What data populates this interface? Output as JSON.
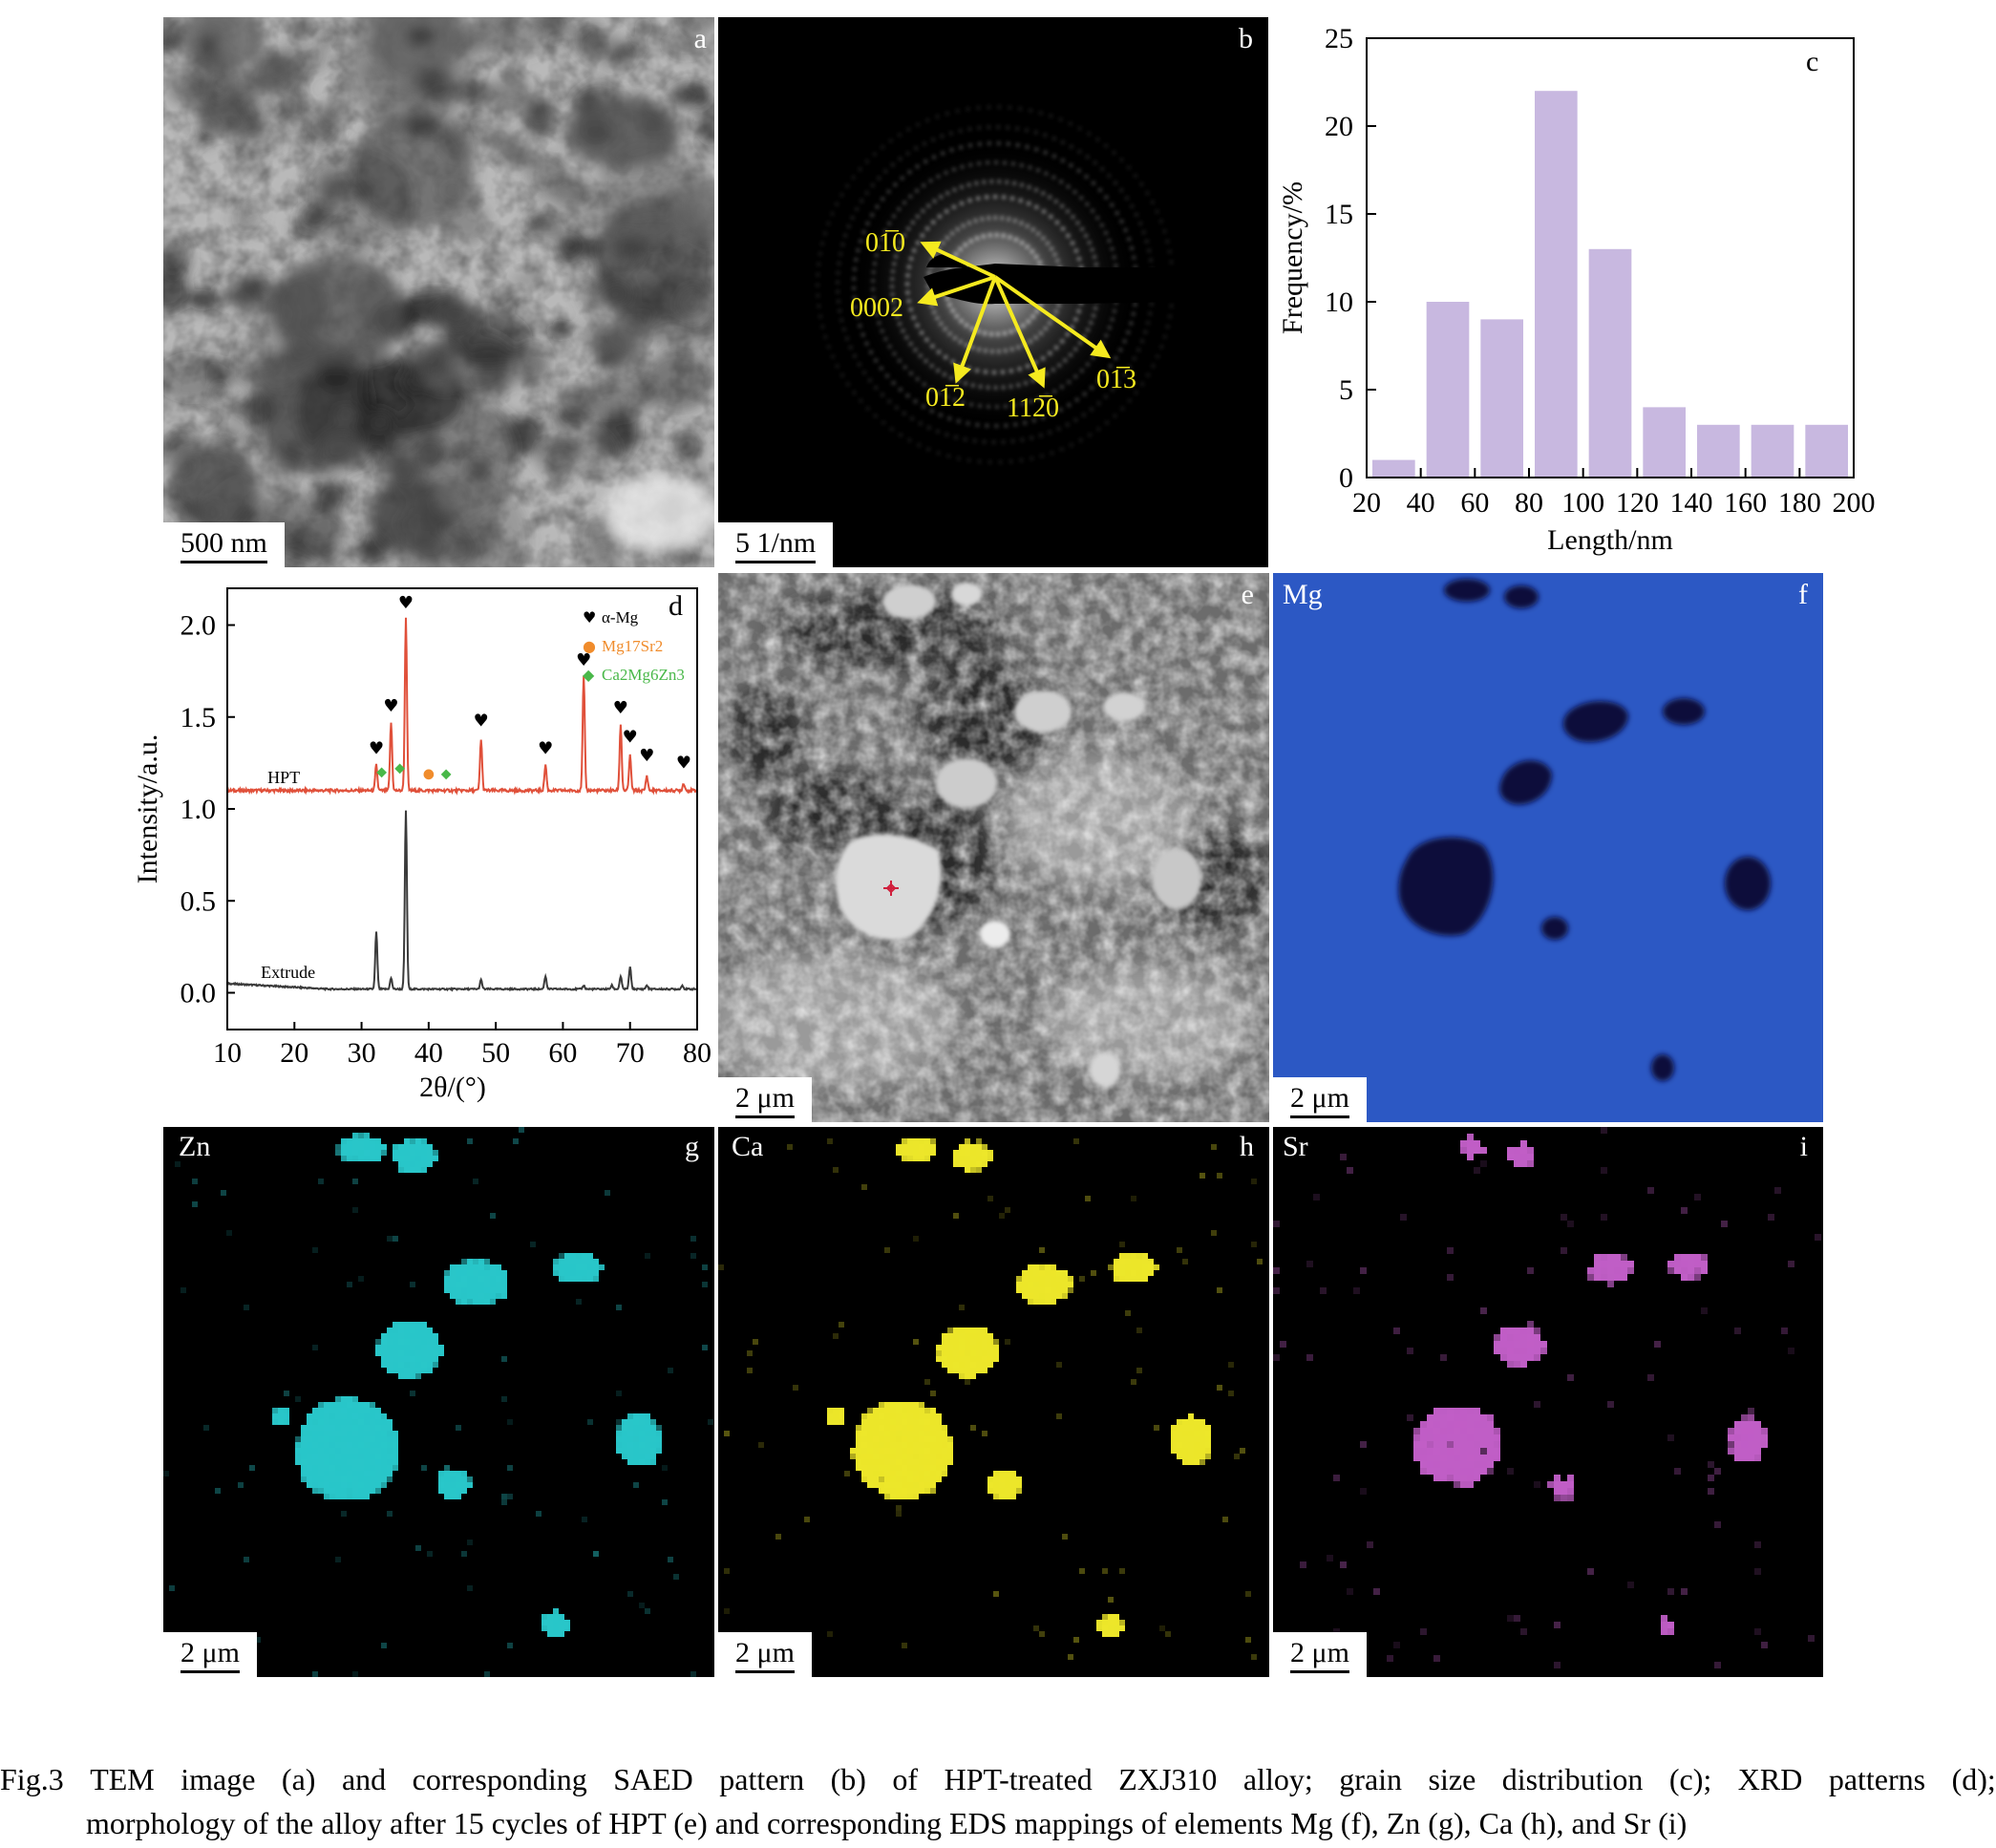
{
  "panels": {
    "a": {
      "letter": "a",
      "scale": "500 nm"
    },
    "b": {
      "letter": "b",
      "scale": "5 1/nm",
      "labels": [
        "01̅0",
        "0002",
        "01̅2",
        "112̅0",
        "01̅3"
      ]
    },
    "c": {
      "letter": "c"
    },
    "d": {
      "letter": "d"
    },
    "e": {
      "letter": "e",
      "scale": "2 μm"
    },
    "f": {
      "letter": "f",
      "element": "Mg",
      "scale": "2 μm"
    },
    "g": {
      "letter": "g",
      "element": "Zn",
      "scale": "2 μm"
    },
    "h": {
      "letter": "h",
      "element": "Ca",
      "scale": "2 μm"
    },
    "i": {
      "letter": "i",
      "element": "Sr",
      "scale": "2 μm"
    }
  },
  "chart_data": [
    {
      "panel": "c",
      "type": "bar",
      "categories": [
        "20-40",
        "40-60",
        "60-80",
        "80-100",
        "100-120",
        "120-140",
        "140-160",
        "160-180",
        "180-200"
      ],
      "values": [
        1,
        10,
        9,
        22,
        13,
        4,
        3,
        3,
        3
      ],
      "xlabel": "Length/nm",
      "ylabel": "Frequency/%",
      "xlim": [
        20,
        200
      ],
      "ylim": [
        0,
        25
      ],
      "xticks": [
        20,
        40,
        60,
        80,
        100,
        120,
        140,
        160,
        180,
        200
      ],
      "yticks": [
        0,
        5,
        10,
        15,
        20,
        25
      ],
      "bar_color": "#c8b8e0"
    },
    {
      "panel": "d",
      "type": "line",
      "xlabel": "2θ/(°)",
      "ylabel": "Intensity/a.u.",
      "xlim": [
        10,
        80
      ],
      "ylim": [
        -0.2,
        2.2
      ],
      "xticks": [
        10,
        20,
        30,
        40,
        50,
        60,
        70,
        80
      ],
      "yticks": [
        0.0,
        0.5,
        1.0,
        1.5,
        2.0
      ],
      "ytick_labels": [
        "0.0",
        "0.5",
        "1.0",
        "1.5",
        "2.0"
      ],
      "legend": [
        {
          "symbol": "♥",
          "text": "α-Mg",
          "color": "#000000"
        },
        {
          "symbol": "●",
          "text": "Mg17Sr2",
          "color": "#f08c2c"
        },
        {
          "symbol": "◆",
          "text": "Ca2Mg6Zn3",
          "color": "#49b849"
        }
      ],
      "legend_placement": "top-right",
      "series": [
        {
          "name": "HPT",
          "color": "#e0503a",
          "baseline": 1.1,
          "peaks": [
            [
              32.2,
              0.14
            ],
            [
              34.4,
              0.37
            ],
            [
              36.6,
              0.94
            ],
            [
              47.8,
              0.28
            ],
            [
              57.4,
              0.14
            ],
            [
              63.1,
              0.62
            ],
            [
              68.6,
              0.36
            ],
            [
              70.0,
              0.19
            ],
            [
              72.5,
              0.08
            ],
            [
              78.0,
              0.04
            ]
          ]
        },
        {
          "name": "Extrude",
          "color": "#3a3a3a",
          "baseline": 0.02,
          "peaks": [
            [
              32.2,
              0.31
            ],
            [
              34.4,
              0.06
            ],
            [
              36.6,
              0.97
            ],
            [
              47.8,
              0.05
            ],
            [
              57.4,
              0.07
            ],
            [
              63.1,
              0.02
            ],
            [
              67.3,
              0.02
            ],
            [
              68.6,
              0.07
            ],
            [
              70.0,
              0.12
            ],
            [
              72.5,
              0.02
            ],
            [
              77.8,
              0.02
            ]
          ]
        }
      ],
      "markers": [
        {
          "x": 32.2,
          "y": 1.3,
          "phase": "α-Mg"
        },
        {
          "x": 34.4,
          "y": 1.53,
          "phase": "α-Mg"
        },
        {
          "x": 36.6,
          "y": 2.09,
          "phase": "α-Mg"
        },
        {
          "x": 47.8,
          "y": 1.45,
          "phase": "α-Mg"
        },
        {
          "x": 57.4,
          "y": 1.3,
          "phase": "α-Mg"
        },
        {
          "x": 63.1,
          "y": 1.78,
          "phase": "α-Mg"
        },
        {
          "x": 68.6,
          "y": 1.52,
          "phase": "α-Mg"
        },
        {
          "x": 70.0,
          "y": 1.36,
          "phase": "α-Mg"
        },
        {
          "x": 72.5,
          "y": 1.26,
          "phase": "α-Mg"
        },
        {
          "x": 78.0,
          "y": 1.22,
          "phase": "α-Mg"
        },
        {
          "x": 40.0,
          "y": 1.17,
          "phase": "Mg17Sr2"
        },
        {
          "x": 33.0,
          "y": 1.18,
          "phase": "Ca2Mg6Zn3"
        },
        {
          "x": 35.7,
          "y": 1.2,
          "phase": "Ca2Mg6Zn3"
        },
        {
          "x": 42.6,
          "y": 1.17,
          "phase": "Ca2Mg6Zn3"
        }
      ]
    }
  ],
  "caption": {
    "line1": [
      "Fig.3",
      "TEM",
      "image",
      "(a)",
      "and",
      "corresponding",
      "SAED",
      "pattern",
      "(b)",
      "of",
      "HPT-treated",
      "ZXJ310",
      "alloy;",
      "grain",
      "size",
      "distribution",
      "(c);",
      "XRD",
      "patterns",
      "(d);"
    ],
    "line2": "morphology of the alloy after 15 cycles of HPT (e) and corresponding EDS mappings of elements Mg (f), Zn (g), Ca (h), and Sr (i)"
  },
  "colors": {
    "zn": "#29c6c9",
    "ca": "#ece62a",
    "sr": "#c05ec6",
    "mg_bg": "#2c58c4"
  }
}
